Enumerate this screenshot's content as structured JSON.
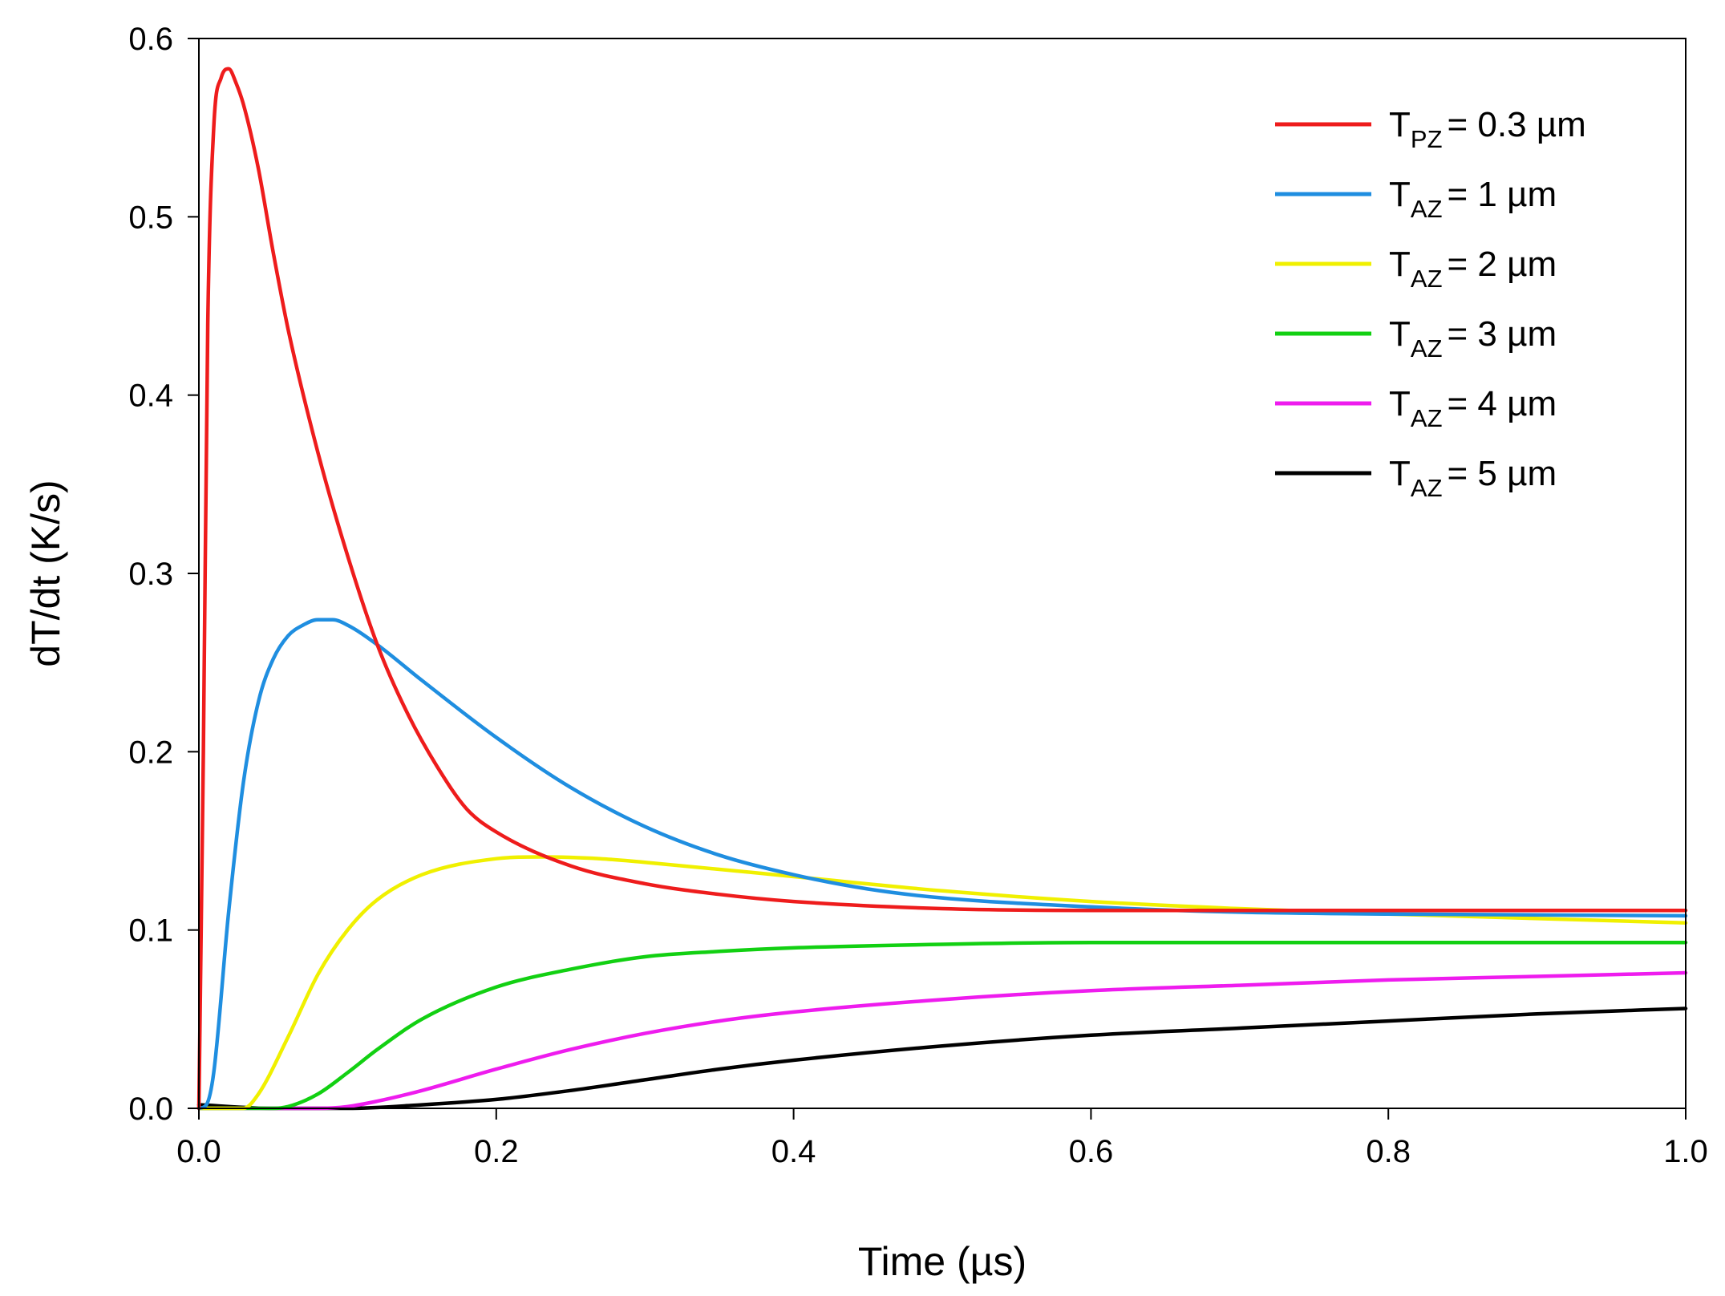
{
  "chart_data": {
    "type": "line",
    "title": "",
    "xlabel": "Time (µs)",
    "ylabel": "dT/dt (K/s)",
    "xlim": [
      0.0,
      1.0
    ],
    "ylim": [
      0.0,
      0.6
    ],
    "x_ticks": [
      "0.0",
      "0.2",
      "0.4",
      "0.6",
      "0.8",
      "1.0"
    ],
    "y_ticks": [
      "0.0",
      "0.1",
      "0.2",
      "0.3",
      "0.4",
      "0.5",
      "0.6"
    ],
    "grid": false,
    "legend_position": "top-right",
    "series": [
      {
        "name": "T_PZ = 0.3 µm",
        "legend": {
          "main": "T",
          "sub": "PZ",
          "rest": "= 0.3 µm"
        },
        "color": "#ee1c1c",
        "x": [
          0,
          0.003,
          0.006,
          0.01,
          0.015,
          0.02,
          0.025,
          0.03,
          0.04,
          0.05,
          0.06,
          0.08,
          0.1,
          0.12,
          0.14,
          0.16,
          0.18,
          0.2,
          0.25,
          0.3,
          0.35,
          0.4,
          0.5,
          0.6,
          0.8,
          1.0
        ],
        "y": [
          0.0,
          0.2,
          0.44,
          0.55,
          0.578,
          0.583,
          0.575,
          0.563,
          0.527,
          0.48,
          0.437,
          0.368,
          0.31,
          0.26,
          0.222,
          0.192,
          0.168,
          0.155,
          0.136,
          0.126,
          0.12,
          0.116,
          0.112,
          0.111,
          0.111,
          0.111
        ]
      },
      {
        "name": "T_AZ = 1 µm",
        "legend": {
          "main": "T",
          "sub": "AZ",
          "rest": "= 1 µm"
        },
        "color": "#1f8ee0",
        "x": [
          0,
          0.005,
          0.01,
          0.02,
          0.03,
          0.04,
          0.05,
          0.06,
          0.07,
          0.08,
          0.09,
          0.1,
          0.12,
          0.15,
          0.2,
          0.25,
          0.3,
          0.35,
          0.4,
          0.45,
          0.5,
          0.6,
          0.7,
          0.8,
          1.0
        ],
        "y": [
          0.0,
          0.002,
          0.02,
          0.11,
          0.183,
          0.228,
          0.252,
          0.265,
          0.271,
          0.274,
          0.274,
          0.271,
          0.26,
          0.24,
          0.208,
          0.18,
          0.158,
          0.142,
          0.131,
          0.123,
          0.118,
          0.113,
          0.11,
          0.109,
          0.108
        ]
      },
      {
        "name": "T_AZ = 2 µm",
        "legend": {
          "main": "T",
          "sub": "AZ",
          "rest": "= 2 µm"
        },
        "color": "#f0f000",
        "x": [
          0,
          0.02,
          0.03,
          0.04,
          0.06,
          0.08,
          0.1,
          0.12,
          0.15,
          0.2,
          0.23,
          0.27,
          0.3,
          0.4,
          0.5,
          0.6,
          0.7,
          0.8,
          1.0
        ],
        "y": [
          0.0,
          0.0,
          0.0,
          0.008,
          0.04,
          0.075,
          0.1,
          0.117,
          0.131,
          0.14,
          0.141,
          0.14,
          0.138,
          0.13,
          0.122,
          0.116,
          0.112,
          0.109,
          0.104
        ]
      },
      {
        "name": "T_AZ = 3 µm",
        "legend": {
          "main": "T",
          "sub": "AZ",
          "rest": "= 3 µm"
        },
        "color": "#12d012",
        "x": [
          0,
          0.05,
          0.06,
          0.08,
          0.1,
          0.12,
          0.15,
          0.2,
          0.25,
          0.3,
          0.35,
          0.4,
          0.5,
          0.6,
          0.8,
          1.0
        ],
        "y": [
          0.0,
          0.0,
          0.001,
          0.008,
          0.02,
          0.033,
          0.05,
          0.068,
          0.078,
          0.085,
          0.088,
          0.09,
          0.092,
          0.093,
          0.093,
          0.093
        ]
      },
      {
        "name": "T_AZ = 4 µm",
        "legend": {
          "main": "T",
          "sub": "AZ",
          "rest": "= 4 µm"
        },
        "color": "#ee1cee",
        "x": [
          0,
          0.08,
          0.1,
          0.12,
          0.15,
          0.2,
          0.25,
          0.3,
          0.35,
          0.4,
          0.5,
          0.6,
          0.7,
          0.8,
          0.9,
          1.0
        ],
        "y": [
          0.0,
          0.0,
          0.001,
          0.004,
          0.01,
          0.022,
          0.033,
          0.042,
          0.049,
          0.054,
          0.061,
          0.066,
          0.069,
          0.072,
          0.074,
          0.076
        ]
      },
      {
        "name": "T_AZ = 5 µm",
        "legend": {
          "main": "T",
          "sub": "AZ",
          "rest": "= 5 µm"
        },
        "color": "#000000",
        "x": [
          0,
          0.05,
          0.1,
          0.15,
          0.2,
          0.25,
          0.3,
          0.35,
          0.4,
          0.5,
          0.6,
          0.7,
          0.8,
          0.9,
          1.0
        ],
        "y": [
          0.002,
          0.0,
          0.0,
          0.002,
          0.005,
          0.01,
          0.016,
          0.022,
          0.027,
          0.035,
          0.041,
          0.045,
          0.049,
          0.053,
          0.056
        ]
      }
    ]
  }
}
